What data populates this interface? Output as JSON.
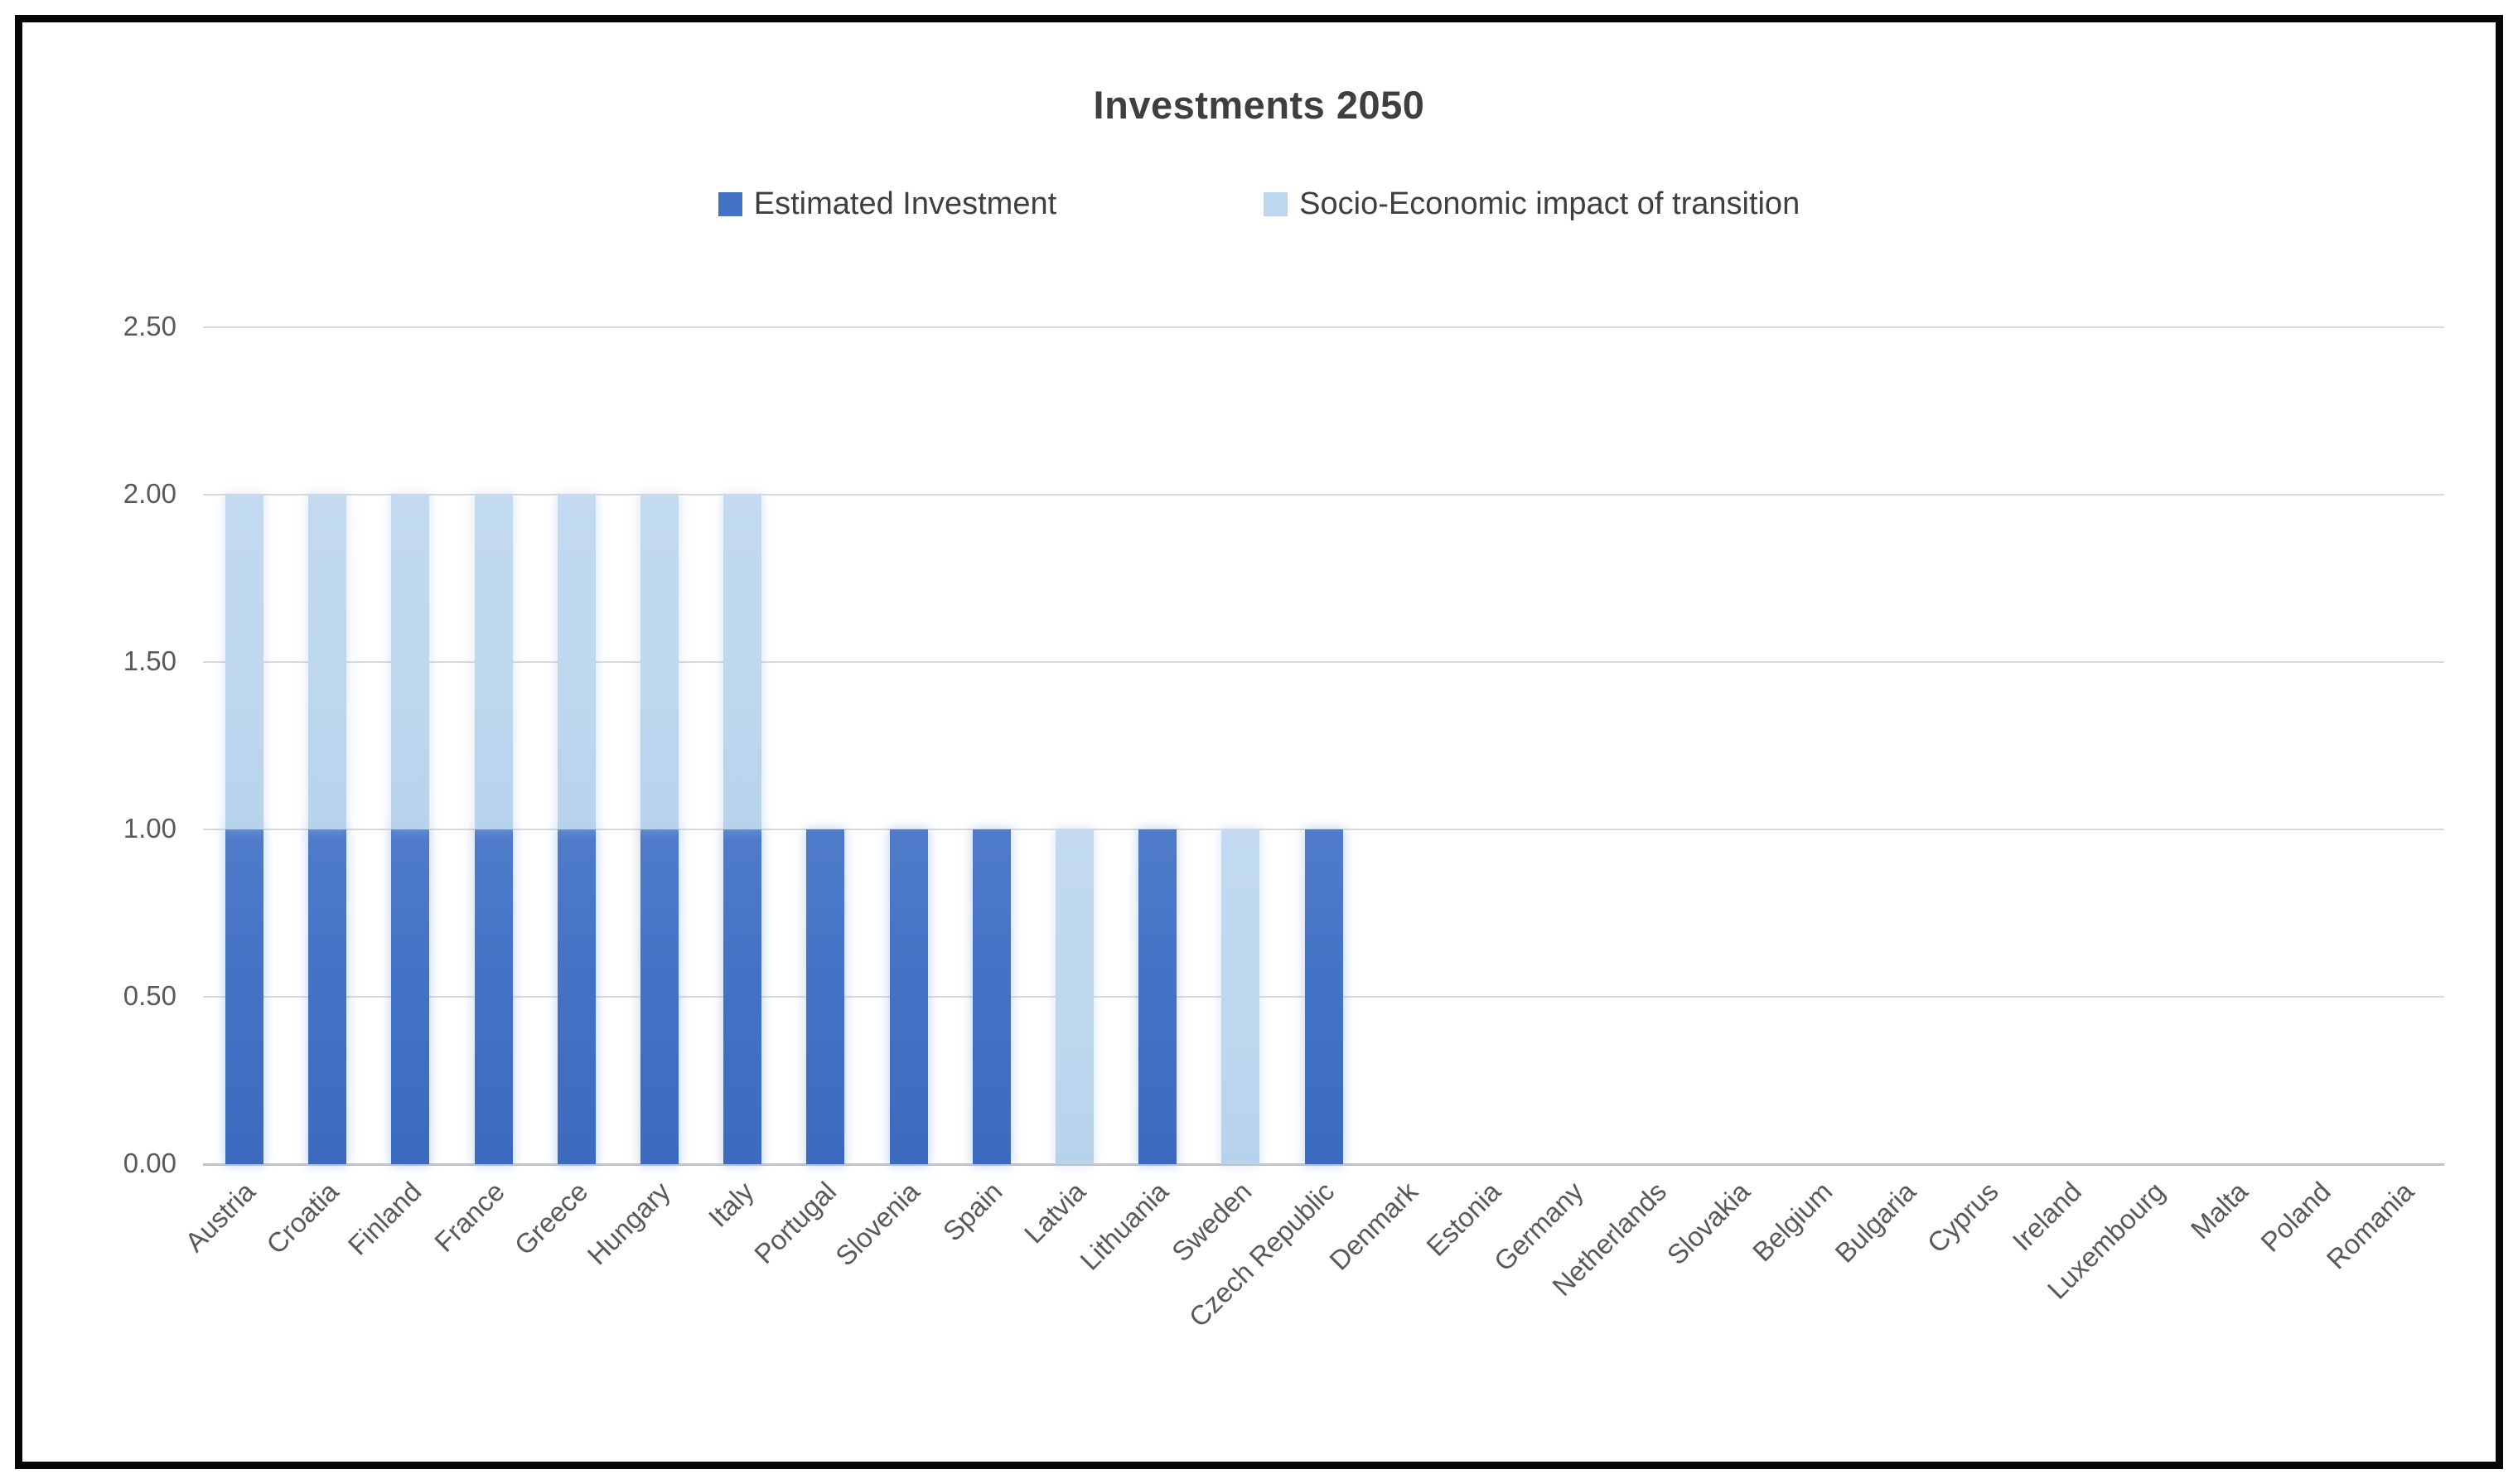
{
  "chart_data": {
    "type": "bar",
    "stacked": true,
    "title": "Investments 2050",
    "legend_position": "top",
    "grid": true,
    "xlabel": "",
    "ylabel": "",
    "ylim": [
      0,
      2.5
    ],
    "ytick_step": 0.5,
    "ytick_labels": [
      "0.00",
      "0.50",
      "1.00",
      "1.50",
      "2.00",
      "2.50"
    ],
    "categories": [
      "Austria",
      "Croatia",
      "Finland",
      "France",
      "Greece",
      "Hungary",
      "Italy",
      "Portugal",
      "Slovenia",
      "Spain",
      "Latvia",
      "Lithuania",
      "Sweden",
      "Czech Republic",
      "Denmark",
      "Estonia",
      "Germany",
      "Netherlands",
      "Slovakia",
      "Belgium",
      "Bulgaria",
      "Cyprus",
      "Ireland",
      "Luxembourg",
      "Malta",
      "Poland",
      "Romania"
    ],
    "series": [
      {
        "name": "Estimated Investment",
        "color": "#4472C4",
        "values": [
          1.0,
          1.0,
          1.0,
          1.0,
          1.0,
          1.0,
          1.0,
          1.0,
          1.0,
          1.0,
          0,
          1.0,
          0,
          1.0,
          0,
          0,
          0,
          0,
          0,
          0,
          0,
          0,
          0,
          0,
          0,
          0,
          0
        ]
      },
      {
        "name": "Socio-Economic impact of transition",
        "color": "#BDD7EE",
        "values": [
          1.0,
          1.0,
          1.0,
          1.0,
          1.0,
          1.0,
          1.0,
          0,
          0,
          0,
          1.0,
          0,
          1.0,
          0,
          0,
          0,
          0,
          0,
          0,
          0,
          0,
          0,
          0,
          0,
          0,
          0,
          0
        ]
      }
    ]
  },
  "colors": {
    "grid": "#D9D9D9",
    "axis_line": "#C3C3C3",
    "title_text": "#3F3F3F",
    "axis_text": "#595959",
    "frame_border": "#060606"
  }
}
